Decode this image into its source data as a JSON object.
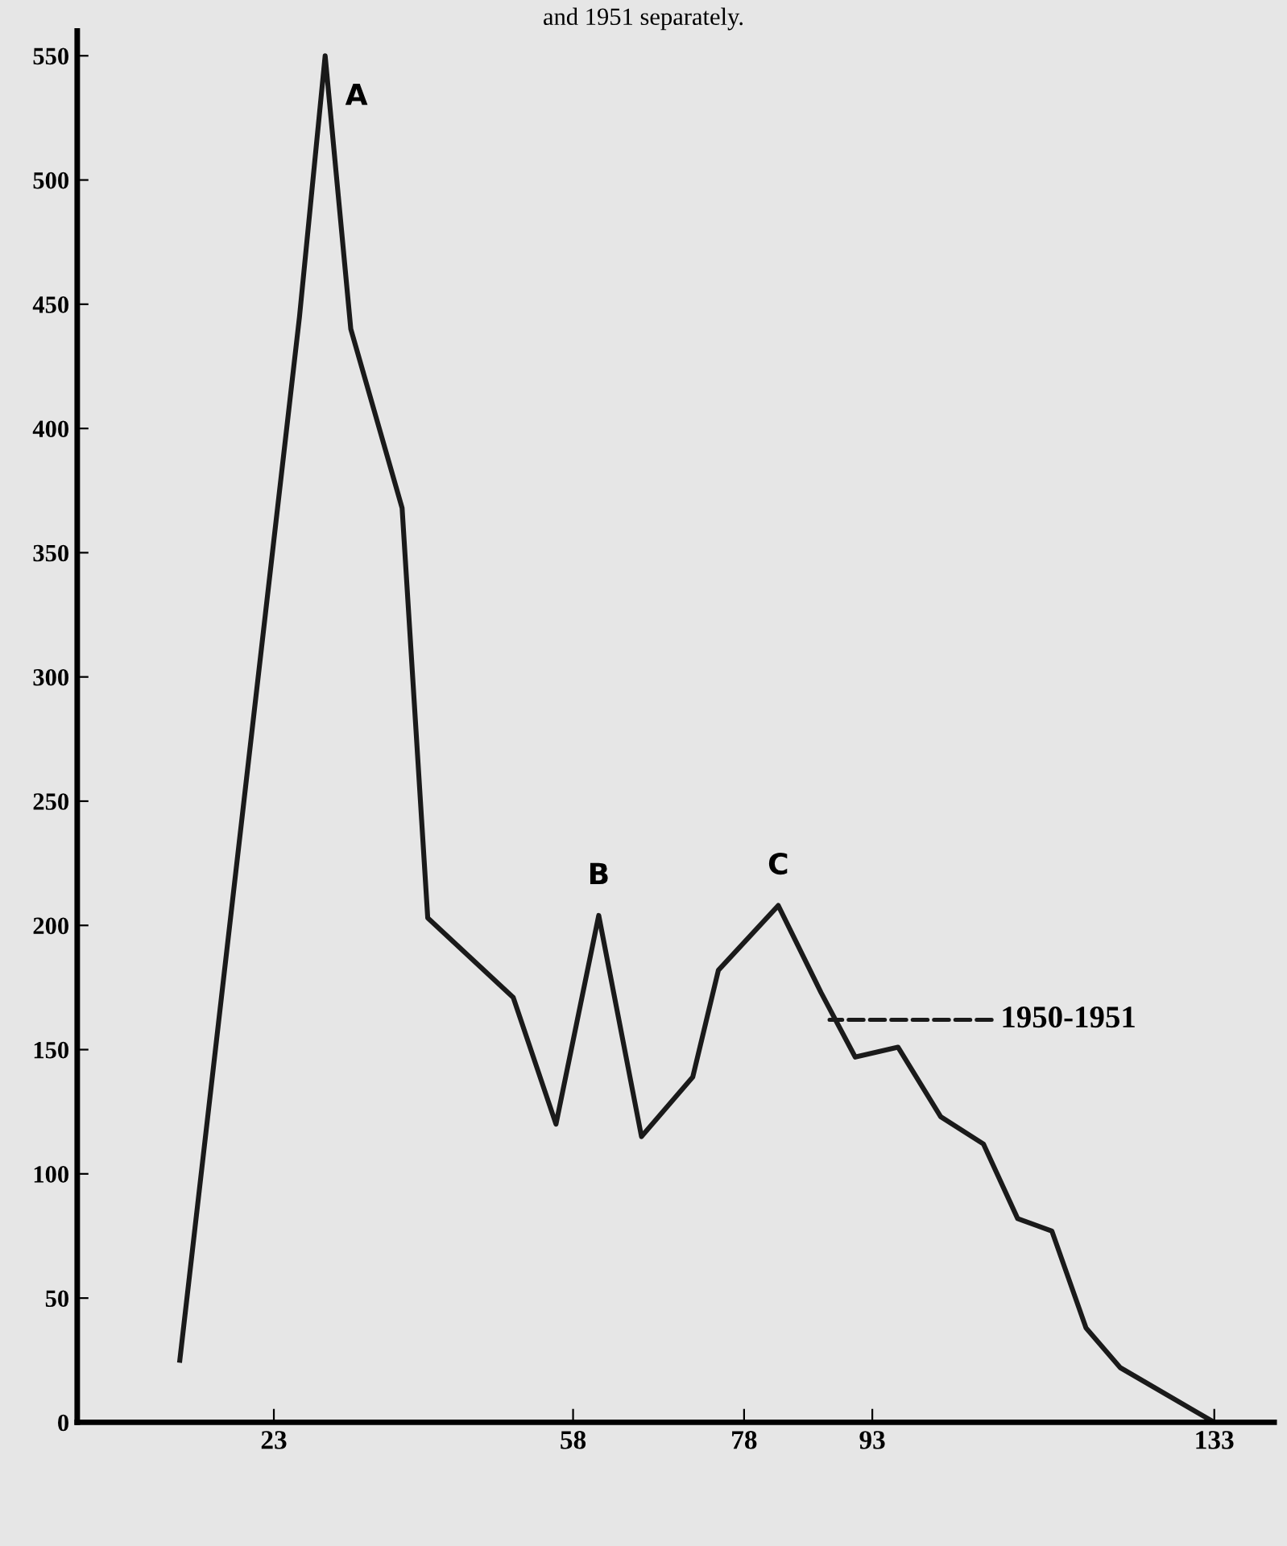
{
  "chart_data": {
    "type": "line",
    "x": [
      12,
      26,
      29,
      32,
      38,
      41,
      51,
      56,
      61,
      66,
      72,
      75,
      82,
      87,
      91,
      96,
      101,
      106,
      110,
      114,
      118,
      122,
      131,
      133
    ],
    "series": [
      {
        "color": "#1a1a1a",
        "values": [
          25,
          445,
          550,
          440,
          368,
          203,
          171,
          120,
          204,
          115,
          139,
          182,
          208,
          173,
          147,
          151,
          123,
          112,
          82,
          77,
          38,
          22,
          4,
          0
        ]
      }
    ],
    "xlim": [
      0,
      140
    ],
    "ylim": [
      0,
      560
    ],
    "xticks": [
      23,
      58,
      78,
      93,
      133
    ],
    "yticks": [
      0,
      50,
      100,
      150,
      200,
      250,
      300,
      350,
      400,
      450,
      500,
      550
    ],
    "annotations": [
      "and 1951 separately.",
      {
        "text": "A",
        "x": 29,
        "y": 550
      },
      {
        "text": "B",
        "x": 61,
        "y": 204
      },
      {
        "text": "C",
        "x": 82,
        "y": 208
      },
      {
        "text": "1950-1951",
        "x": 88,
        "y": 162
      }
    ],
    "grid": false,
    "legend": false,
    "marker": "none",
    "line_style": "solid"
  }
}
